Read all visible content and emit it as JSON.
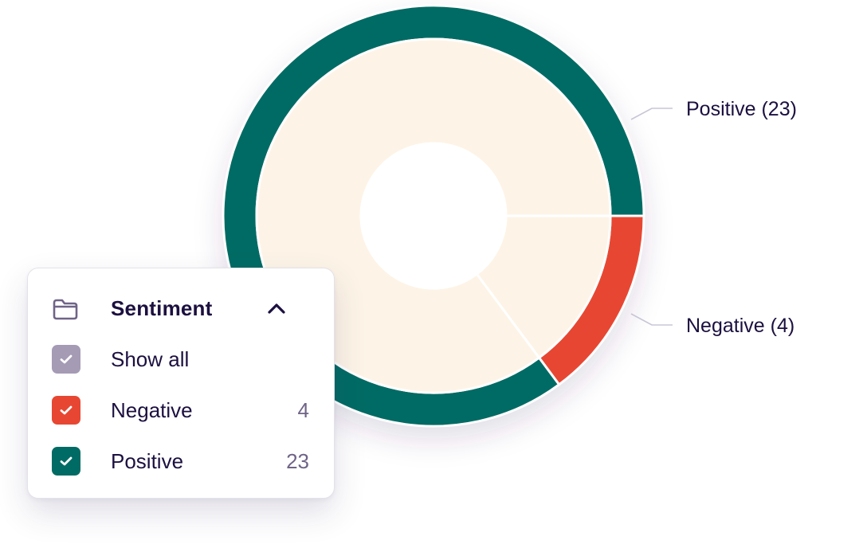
{
  "chart_data": {
    "type": "pie",
    "style": "donut",
    "categories": [
      "Positive",
      "Negative"
    ],
    "values": [
      23,
      4
    ],
    "colors": [
      "#006b64",
      "#e74732"
    ],
    "callouts": [
      "Positive (23)",
      "Negative (4)"
    ]
  },
  "filter_panel": {
    "title": "Sentiment",
    "icons": {
      "folder": "folder-icon",
      "collapse": "chevron-up-icon",
      "check": "check-icon"
    },
    "items": [
      {
        "label": "Show all",
        "count": "",
        "checked": true,
        "color": "#a59bb5"
      },
      {
        "label": "Negative",
        "count": "4",
        "checked": true,
        "color": "#e74732"
      },
      {
        "label": "Positive",
        "count": "23",
        "checked": true,
        "color": "#006b64"
      }
    ]
  },
  "colors": {
    "inner_ring": "#fdf4e7",
    "text_primary": "#1c1040",
    "text_muted": "#6f6487",
    "leader_line": "#c9c5d6"
  }
}
